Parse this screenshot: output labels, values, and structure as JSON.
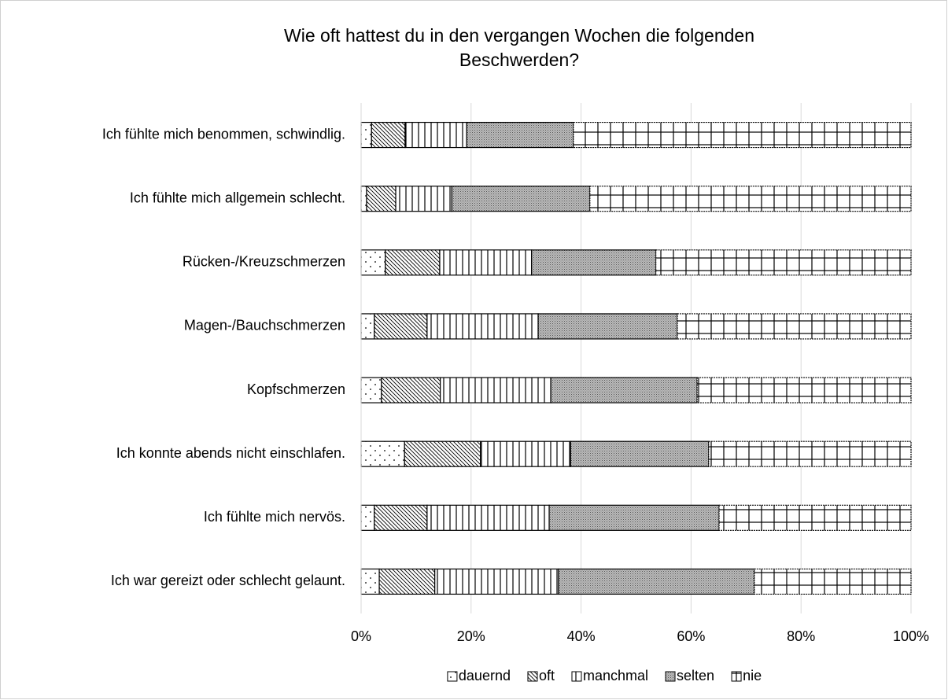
{
  "chart_data": {
    "type": "stacked_barh",
    "title": "Wie oft hattest du in den vergangen Wochen die folgenden Beschwerden?",
    "categories": [
      "Ich fühlte mich benommen, schwindlig.",
      "Ich fühlte mich allgemein schlecht.",
      "Rücken-/Kreuzschmerzen",
      "Magen-/Bauchschmerzen",
      "Kopfschmerzen",
      "Ich konnte abends nicht einschlafen.",
      "Ich fühlte mich nervös.",
      "Ich war gereizt oder schlecht gelaunt."
    ],
    "series": [
      {
        "name": "dauernd",
        "color": "#000000",
        "pattern": "dots",
        "values": [
          1.9,
          1.0,
          4.4,
          2.4,
          3.7,
          7.9,
          2.4,
          3.3
        ]
      },
      {
        "name": "oft",
        "color": "#000000",
        "pattern": "diagonal",
        "values": [
          6.1,
          5.3,
          9.9,
          9.6,
          10.7,
          13.8,
          9.6,
          10.1
        ]
      },
      {
        "name": "manchmal",
        "color": "#000000",
        "pattern": "vertical",
        "values": [
          11.2,
          10.2,
          16.7,
          20.2,
          20.1,
          16.4,
          22.2,
          22.5
        ]
      },
      {
        "name": "selten",
        "color": "#000000",
        "pattern": "dense",
        "values": [
          19.4,
          25.1,
          22.6,
          25.3,
          26.6,
          25.1,
          30.9,
          35.6
        ]
      },
      {
        "name": "nie",
        "color": "#000000",
        "pattern": "grid",
        "values": [
          61.4,
          58.4,
          46.4,
          42.5,
          38.9,
          36.8,
          34.9,
          28.5
        ]
      }
    ],
    "xlim": [
      0,
      100
    ],
    "xticks": [
      {
        "value": 0,
        "label": "0%"
      },
      {
        "value": 20,
        "label": "20%"
      },
      {
        "value": 40,
        "label": "40%"
      },
      {
        "value": 60,
        "label": "60%"
      },
      {
        "value": 80,
        "label": "80%"
      },
      {
        "value": 100,
        "label": "100%"
      }
    ],
    "grid": true,
    "legend": "bottom"
  }
}
